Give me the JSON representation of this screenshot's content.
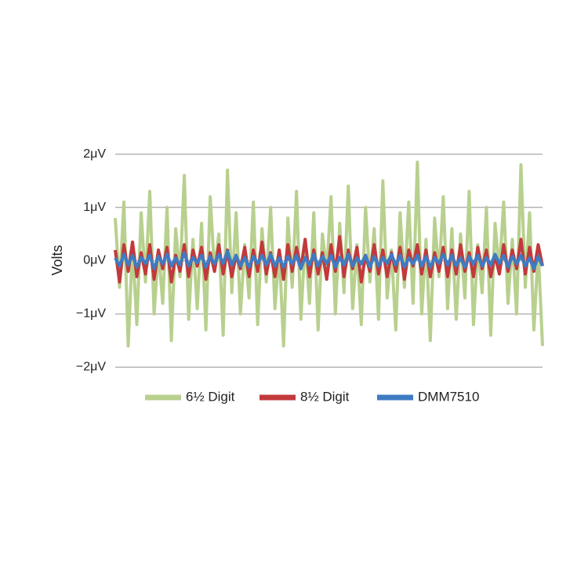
{
  "chart_data": {
    "type": "line",
    "y_label": "Volts",
    "categories": [
      null,
      null,
      null,
      null,
      null,
      null,
      null,
      null,
      null,
      null,
      null,
      null,
      null,
      null,
      null,
      null,
      null,
      null,
      null,
      null,
      null,
      null,
      null,
      null,
      null,
      null,
      null,
      null,
      null,
      null,
      null,
      null,
      null,
      null,
      null,
      null,
      null,
      null,
      null,
      null,
      null,
      null,
      null,
      null,
      null,
      null,
      null,
      null,
      null,
      null,
      null,
      null,
      null,
      null,
      null,
      null,
      null,
      null,
      null,
      null,
      null,
      null,
      null,
      null,
      null,
      null,
      null,
      null,
      null,
      null,
      null,
      null,
      null,
      null,
      null,
      null,
      null,
      null,
      null,
      null,
      null,
      null,
      null,
      null,
      null,
      null,
      null,
      null,
      null,
      null,
      null,
      null,
      null,
      null,
      null,
      null,
      null,
      null,
      null,
      null
    ],
    "ylim": [
      -2.2,
      2.2
    ],
    "yticks": [
      {
        "value": -2,
        "label": "−2μV"
      },
      {
        "value": -1,
        "label": "−1μV"
      },
      {
        "value": 0,
        "label": "0μV"
      },
      {
        "value": 1,
        "label": "1μV"
      },
      {
        "value": 2,
        "label": "2μV"
      }
    ],
    "grid": true,
    "legend": "bottom",
    "series": [
      {
        "name": "6½ Digit",
        "color": "#b8d08e",
        "values": [
          0.8,
          -0.5,
          1.1,
          -1.6,
          0.3,
          -1.2,
          0.9,
          -0.4,
          1.3,
          -1.0,
          0.2,
          -0.8,
          1.0,
          -1.5,
          0.6,
          -0.3,
          1.6,
          -1.1,
          0.4,
          -0.9,
          0.7,
          -1.3,
          1.2,
          -0.2,
          0.5,
          -1.4,
          1.7,
          -0.6,
          0.9,
          -1.0,
          0.3,
          -0.7,
          1.1,
          -1.2,
          0.6,
          -0.4,
          1.0,
          -0.9,
          0.2,
          -1.6,
          0.8,
          -0.5,
          1.3,
          -1.1,
          0.4,
          -0.8,
          0.9,
          -1.3,
          0.5,
          -0.2,
          1.2,
          -1.0,
          0.7,
          -0.6,
          1.4,
          -0.9,
          0.3,
          -1.2,
          1.0,
          -0.4,
          0.6,
          -1.1,
          1.5,
          -0.7,
          0.2,
          -1.3,
          0.9,
          -0.5,
          1.1,
          -0.8,
          1.85,
          -1.0,
          0.4,
          -1.5,
          0.8,
          -0.3,
          1.2,
          -0.9,
          0.6,
          -1.1,
          0.5,
          -0.7,
          1.3,
          -1.2,
          0.3,
          -0.6,
          1.0,
          -1.4,
          0.7,
          -0.2,
          1.1,
          -0.8,
          0.4,
          -1.0,
          1.8,
          -0.5,
          0.9,
          -1.3,
          0.2,
          -1.6
        ]
      },
      {
        "name": "8½ Digit",
        "color": "#c2393c",
        "values": [
          0.2,
          -0.4,
          0.3,
          -0.2,
          0.35,
          -0.3,
          0.15,
          -0.25,
          0.3,
          -0.35,
          0.2,
          -0.15,
          0.25,
          -0.4,
          0.1,
          -0.2,
          0.3,
          -0.3,
          0.2,
          -0.1,
          0.25,
          -0.35,
          0.15,
          -0.2,
          0.3,
          -0.25,
          0.2,
          -0.3,
          0.1,
          -0.15,
          0.25,
          -0.3,
          0.2,
          -0.2,
          0.35,
          -0.25,
          0.15,
          -0.3,
          0.2,
          -0.35,
          0.3,
          -0.2,
          0.25,
          -0.15,
          0.4,
          -0.3,
          0.2,
          -0.25,
          0.15,
          -0.35,
          0.3,
          -0.2,
          0.45,
          -0.3,
          0.2,
          -0.15,
          0.25,
          -0.4,
          0.1,
          -0.2,
          0.3,
          -0.25,
          0.2,
          -0.3,
          0.15,
          -0.2,
          0.25,
          -0.35,
          0.2,
          -0.1,
          0.3,
          -0.25,
          0.2,
          -0.3,
          0.15,
          -0.2,
          0.25,
          -0.3,
          0.2,
          -0.25,
          0.3,
          -0.2,
          0.15,
          -0.3,
          0.25,
          -0.15,
          0.2,
          -0.3,
          0.1,
          -0.25,
          0.3,
          -0.2,
          0.2,
          -0.15,
          0.4,
          -0.25,
          0.25,
          -0.2,
          0.3,
          -0.1
        ]
      },
      {
        "name": "DMM7510",
        "color": "#3e7bc3",
        "values": [
          0.05,
          -0.1,
          0.12,
          -0.08,
          0.1,
          -0.12,
          0.06,
          -0.05,
          0.1,
          -0.15,
          0.08,
          -0.06,
          0.12,
          -0.1,
          0.05,
          -0.08,
          0.15,
          -0.1,
          0.06,
          -0.04,
          0.1,
          -0.12,
          0.08,
          -0.06,
          0.12,
          -0.05,
          0.18,
          -0.08,
          0.1,
          -0.1,
          0.06,
          -0.12,
          0.08,
          -0.05,
          0.1,
          -0.08,
          0.12,
          -0.1,
          0.05,
          -0.12,
          0.08,
          -0.06,
          0.1,
          -0.15,
          0.06,
          -0.08,
          0.12,
          -0.1,
          0.08,
          -0.05,
          0.1,
          -0.12,
          0.06,
          -0.08,
          0.12,
          -0.1,
          0.05,
          -0.06,
          0.1,
          -0.12,
          0.08,
          -0.1,
          0.06,
          -0.05,
          0.12,
          -0.08,
          0.1,
          -0.12,
          0.05,
          -0.06,
          0.1,
          -0.1,
          0.08,
          -0.12,
          0.06,
          -0.05,
          0.12,
          -0.08,
          0.1,
          -0.1,
          0.05,
          -0.12,
          0.08,
          -0.06,
          0.1,
          -0.1,
          0.06,
          -0.08,
          0.12,
          -0.05,
          0.1,
          -0.12,
          0.08,
          -0.06,
          0.1,
          -0.1,
          0.05,
          -0.15,
          0.08,
          -0.1
        ]
      }
    ]
  }
}
